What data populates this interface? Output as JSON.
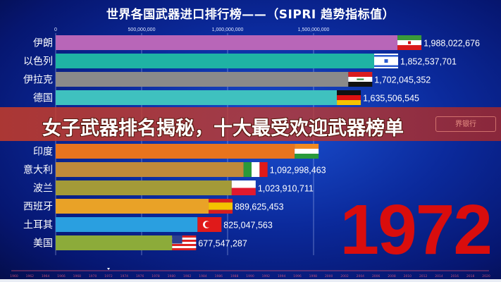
{
  "chart_data": {
    "type": "bar",
    "orientation": "horizontal",
    "title": "世界各国武器进口排行榜——（SIPRI 趋势指标值）",
    "year": "1972",
    "xlim": [
      0,
      2000000000
    ],
    "x_ticks": [
      "0",
      "500,000,000",
      "1,000,000,000",
      "1,500,000,000"
    ],
    "x_tick_values": [
      0,
      500000000,
      1000000000,
      1500000000
    ],
    "grid": true,
    "categories": [
      "伊朗",
      "以色列",
      "伊拉克",
      "德国",
      "印度",
      "意大利",
      "波兰",
      "西班牙",
      "土耳其",
      "美国"
    ],
    "values": [
      1988022676,
      1852537701,
      1702045352,
      1635506545,
      1390000000,
      1092998463,
      1023910711,
      889625453,
      825047563,
      677547287
    ],
    "value_labels": [
      "1,988,022,676",
      "1,852,537,701",
      "1,702,045,352",
      "1,635,506,545",
      "",
      "1,092,998,463",
      "1,023,910,711",
      "889,625,453",
      "825,047,563",
      "677,547,287"
    ],
    "colors": [
      "#b866b8",
      "#1fb3a4",
      "#8a8a8a",
      "#3fc1bf",
      "#e8741e",
      "#c08a3a",
      "#a39a38",
      "#e9a227",
      "#2a9fe0",
      "#8cab3a"
    ],
    "flags": [
      "iran",
      "israel",
      "iraq",
      "germany",
      "india",
      "italy",
      "poland",
      "spain",
      "turkey",
      "usa"
    ],
    "timeline": {
      "start": 1960,
      "end": 2020,
      "step": 2,
      "current": 1972,
      "labels": [
        "1960",
        "1962",
        "1964",
        "1966",
        "1968",
        "1970",
        "1972",
        "1974",
        "1976",
        "1978",
        "1980",
        "1982",
        "1984",
        "1986",
        "1988",
        "1990",
        "1992",
        "1994",
        "1996",
        "1998",
        "2000",
        "2002",
        "2004",
        "2006",
        "2008",
        "2010",
        "2012",
        "2014",
        "2016",
        "2018",
        "2020"
      ]
    }
  },
  "banner": {
    "text": "女子武器排名揭秘，十大最受欢迎武器榜单",
    "badge": "界银行"
  },
  "colors": {
    "background": "#0b2a9c",
    "year": "#d90d0d",
    "banner": "#c83c28"
  }
}
